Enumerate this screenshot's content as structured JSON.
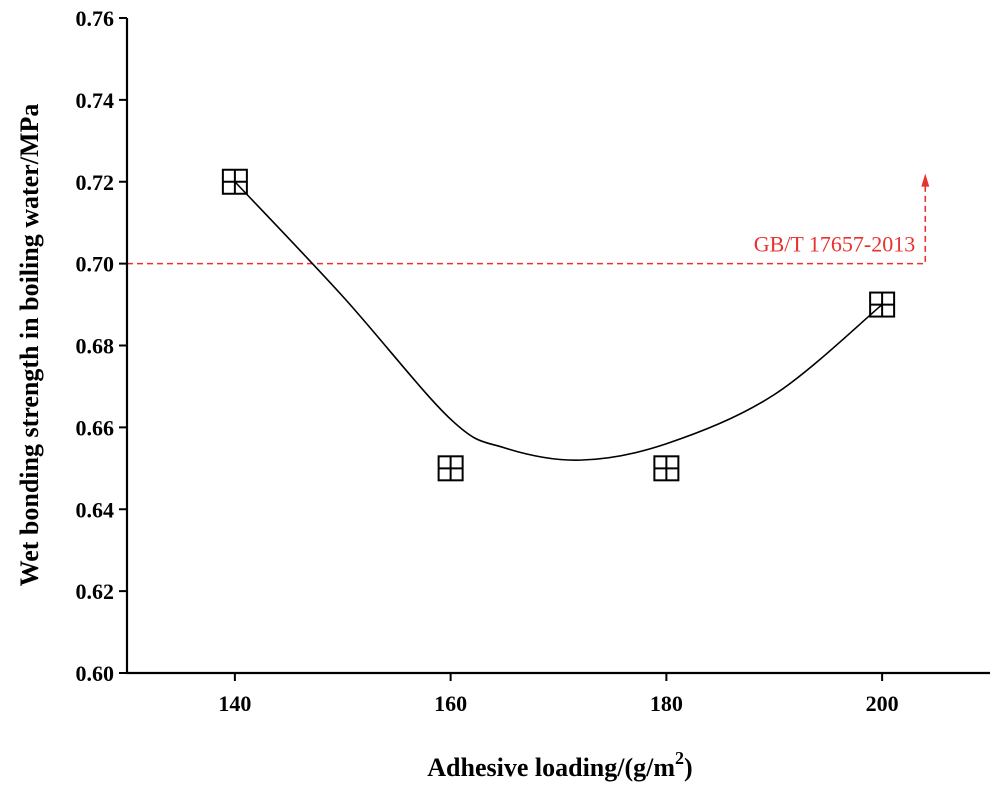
{
  "chart_data": {
    "type": "scatter",
    "title": "",
    "xlabel": "Adhesive loading/(g/m",
    "xlabel_superscript": "2",
    "xlabel_suffix": ")",
    "ylabel": "Wet bonding strength in boiling water/MPa",
    "xlim": [
      130,
      210
    ],
    "ylim": [
      0.6,
      0.76
    ],
    "xticks": [
      140,
      160,
      180,
      200
    ],
    "xtick_labels": [
      "140",
      "160",
      "180",
      "200"
    ],
    "yticks": [
      0.6,
      0.62,
      0.64,
      0.66,
      0.68,
      0.7,
      0.72,
      0.74,
      0.76
    ],
    "ytick_labels": [
      "0.60",
      "0.62",
      "0.64",
      "0.66",
      "0.68",
      "0.70",
      "0.72",
      "0.74",
      "0.76"
    ],
    "series": [
      {
        "name": "Wet bonding strength",
        "marker": "square-cross",
        "x": [
          140,
          160,
          180,
          200
        ],
        "y": [
          0.72,
          0.65,
          0.65,
          0.69
        ]
      }
    ],
    "fit": {
      "type": "smooth-curve",
      "x": [
        140,
        150,
        160,
        165,
        172,
        180,
        190,
        200
      ],
      "y": [
        0.72,
        0.692,
        0.662,
        0.655,
        0.652,
        0.656,
        0.668,
        0.69
      ]
    },
    "reference_line": {
      "label": "GB/T 17657-2013",
      "y": 0.7,
      "x_start": 130,
      "x_end": 204,
      "arrow_to_y": 0.722,
      "color": "#e8322f"
    }
  }
}
